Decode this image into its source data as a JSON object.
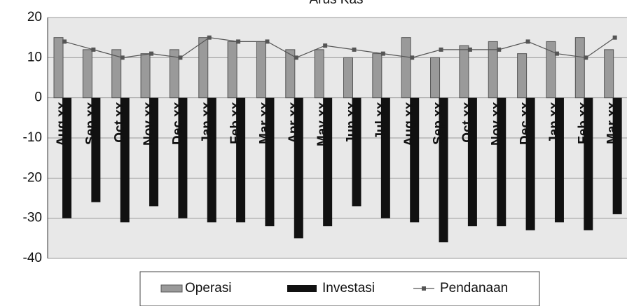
{
  "chart_data": {
    "type": "bar-line",
    "title": "Arus Kas",
    "categories": [
      "Aug xx",
      "Sep xx",
      "Oct xx",
      "Nov xx",
      "Dec xx",
      "Jan xx",
      "Feb xx",
      "Mar xx",
      "Apr xx",
      "May xx",
      "Jun xx",
      "Jul xx",
      "Aug xx",
      "Sep xx",
      "Oct xx",
      "Nov xx",
      "Dec xx",
      "Jan xx",
      "Feb xx",
      "Mar xx"
    ],
    "series": [
      {
        "name": "Operasi",
        "color": "#9a9a9a",
        "values": [
          15,
          12,
          12,
          11,
          12,
          15,
          14,
          14,
          12,
          12,
          10,
          11,
          15,
          10,
          13,
          14,
          11,
          14,
          15,
          12
        ]
      },
      {
        "name": "Investasi",
        "color": "#111111",
        "values": [
          -30,
          -26,
          -31,
          -27,
          -30,
          -31,
          -31,
          -32,
          -35,
          -32,
          -27,
          -30,
          -31,
          -36,
          -32,
          -32,
          -33,
          -31,
          -33,
          -29
        ]
      },
      {
        "name": "Pendanaan",
        "color": "#555555",
        "values": [
          14,
          12,
          10,
          11,
          10,
          15,
          14,
          14,
          10,
          13,
          12,
          11,
          10,
          12,
          12,
          12,
          14,
          11,
          10,
          15
        ]
      }
    ],
    "ylim": [
      -40,
      20
    ],
    "yticks": [
      -40,
      -30,
      -20,
      -10,
      0,
      10,
      20
    ],
    "grid": true
  }
}
